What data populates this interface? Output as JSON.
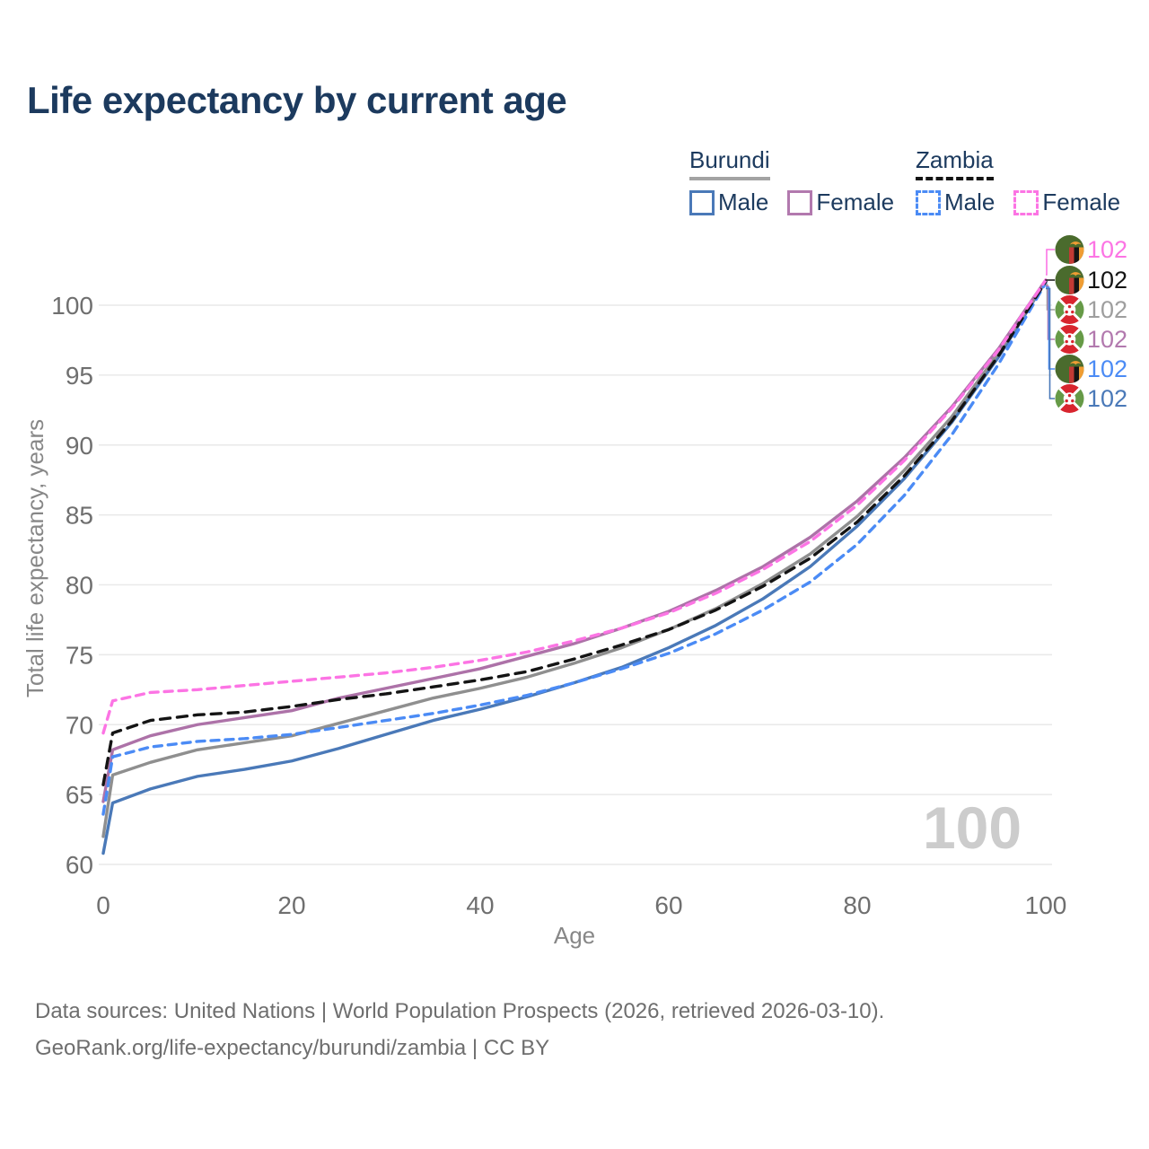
{
  "title": "Life expectancy by current age",
  "legend": {
    "groups": [
      {
        "country": "Burundi",
        "line_style": "solid",
        "line_color": "#a3a3a3",
        "items": [
          {
            "label": "Male",
            "color": "#4a79b8",
            "dashed": false
          },
          {
            "label": "Female",
            "color": "#b279ae",
            "dashed": false
          }
        ]
      },
      {
        "country": "Zambia",
        "line_style": "dashed",
        "line_color": "#141414",
        "items": [
          {
            "label": "Male",
            "color": "#4b8bf5",
            "dashed": true
          },
          {
            "label": "Female",
            "color": "#fc74e4",
            "dashed": true
          }
        ]
      }
    ]
  },
  "chart_data": {
    "type": "line",
    "title": "Life expectancy by current age",
    "xlabel": "Age",
    "ylabel": "Total life expectancy, years",
    "xlim": [
      0,
      100
    ],
    "ylim": [
      60,
      102
    ],
    "x_ticks": [
      0,
      20,
      40,
      60,
      80,
      100
    ],
    "y_ticks": [
      60,
      65,
      70,
      75,
      80,
      85,
      90,
      95,
      100
    ],
    "grid": "horizontal-only",
    "legend_position": "top-right",
    "watermark": "100",
    "x": [
      0,
      1,
      5,
      10,
      15,
      20,
      25,
      30,
      35,
      40,
      45,
      50,
      55,
      60,
      65,
      70,
      75,
      80,
      85,
      90,
      95,
      100
    ],
    "series": [
      {
        "id": "burundi_male",
        "name": "Burundi Male",
        "country": "Burundi",
        "sex": "Male",
        "style": "solid",
        "color": "#4a79b8",
        "values": [
          60.8,
          64.4,
          65.4,
          66.3,
          66.8,
          67.4,
          68.3,
          69.3,
          70.3,
          71.1,
          72.0,
          73.0,
          74.1,
          75.5,
          77.1,
          79.0,
          81.3,
          84.2,
          87.6,
          91.6,
          96.3,
          101.7
        ]
      },
      {
        "id": "burundi_all",
        "name": "Burundi Both sexes",
        "country": "Burundi",
        "sex": "All",
        "style": "solid",
        "color": "#8f8f8f",
        "values": [
          62.0,
          66.4,
          67.3,
          68.2,
          68.7,
          69.2,
          70.1,
          71.0,
          71.9,
          72.6,
          73.4,
          74.4,
          75.5,
          76.8,
          78.3,
          80.1,
          82.2,
          84.9,
          88.2,
          92.0,
          96.6,
          101.7
        ]
      },
      {
        "id": "burundi_female",
        "name": "Burundi Female",
        "country": "Burundi",
        "sex": "Female",
        "style": "solid",
        "color": "#ad72a8",
        "values": [
          64.5,
          68.2,
          69.2,
          70.0,
          70.5,
          71.0,
          71.9,
          72.6,
          73.3,
          74.0,
          74.9,
          75.8,
          76.9,
          78.1,
          79.6,
          81.3,
          83.4,
          86.0,
          89.1,
          92.7,
          96.9,
          101.8
        ]
      },
      {
        "id": "zambia_male",
        "name": "Zambia Male",
        "country": "Zambia",
        "sex": "Male",
        "style": "dashed",
        "color": "#4b8bf5",
        "values": [
          63.6,
          67.7,
          68.4,
          68.8,
          69.0,
          69.3,
          69.8,
          70.3,
          70.8,
          71.4,
          72.1,
          73.0,
          74.0,
          75.1,
          76.5,
          78.2,
          80.2,
          82.9,
          86.4,
          90.7,
          95.8,
          101.6
        ]
      },
      {
        "id": "zambia_all",
        "name": "Zambia Both sexes",
        "country": "Zambia",
        "sex": "All",
        "style": "dashed",
        "color": "#141414",
        "values": [
          65.7,
          69.4,
          70.3,
          70.7,
          70.9,
          71.3,
          71.8,
          72.2,
          72.7,
          73.2,
          73.8,
          74.7,
          75.7,
          76.8,
          78.2,
          79.9,
          81.9,
          84.5,
          87.8,
          91.7,
          96.4,
          101.7
        ]
      },
      {
        "id": "zambia_female",
        "name": "Zambia Female",
        "country": "Zambia",
        "sex": "Female",
        "style": "dashed",
        "color": "#fc74e4",
        "values": [
          69.4,
          71.7,
          72.3,
          72.5,
          72.8,
          73.1,
          73.4,
          73.7,
          74.1,
          74.6,
          75.2,
          76.0,
          76.9,
          78.0,
          79.4,
          81.1,
          83.1,
          85.7,
          88.9,
          92.6,
          96.8,
          101.8
        ]
      }
    ],
    "end_labels": [
      {
        "value": "102",
        "flag": "zambia",
        "series": "zambia_female",
        "color": "#fc74e4"
      },
      {
        "value": "102",
        "flag": "zambia",
        "series": "zambia_all",
        "color": "#141414"
      },
      {
        "value": "102",
        "flag": "burundi",
        "series": "burundi_all",
        "color": "#9e9e9e"
      },
      {
        "value": "102",
        "flag": "burundi",
        "series": "burundi_female",
        "color": "#b279ae"
      },
      {
        "value": "102",
        "flag": "zambia",
        "series": "zambia_male",
        "color": "#4b8bf5"
      },
      {
        "value": "102",
        "flag": "burundi",
        "series": "burundi_male",
        "color": "#4a79b8"
      }
    ]
  },
  "colors": {
    "background": "#ffffff",
    "title_text": "#1c3a5e",
    "tick_text": "#6f6f6f",
    "axis_title_text": "#878787",
    "gridline": "#e9e9e9",
    "watermark": "#cccccc",
    "footer_text": "#6e6e6e"
  },
  "footer": {
    "line1": "Data sources: United Nations | World Population Prospects (2026, retrieved 2026-03-10).",
    "line2": "GeoRank.org/life-expectancy/burundi/zambia | CC BY"
  }
}
